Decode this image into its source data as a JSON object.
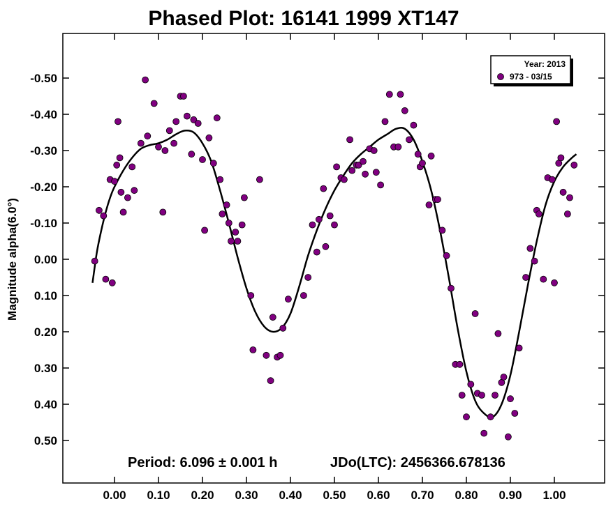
{
  "chart_data": {
    "type": "scatter",
    "title": "Phased Plot: 16141 1999 XT147",
    "xlabel": "",
    "ylabel": "Magnitude alpha(6.0°)",
    "xlim": [
      -0.12,
      1.1
    ],
    "ylim": [
      0.62,
      -0.62
    ],
    "y_inverted": true,
    "x_ticks": [
      "0.00",
      "0.10",
      "0.20",
      "0.30",
      "0.40",
      "0.50",
      "0.60",
      "0.70",
      "0.80",
      "0.90",
      "1.00"
    ],
    "x_tick_values": [
      0.0,
      0.1,
      0.2,
      0.3,
      0.4,
      0.5,
      0.6,
      0.7,
      0.8,
      0.9,
      1.0
    ],
    "y_ticks": [
      "-0.50",
      "-0.40",
      "-0.30",
      "-0.20",
      "-0.10",
      "0.00",
      "0.10",
      "0.20",
      "0.30",
      "0.40",
      "0.50"
    ],
    "y_tick_values": [
      -0.5,
      -0.4,
      -0.3,
      -0.2,
      -0.1,
      0.0,
      0.1,
      0.2,
      0.3,
      0.4,
      0.5
    ],
    "grid": false,
    "legend": {
      "placement": "top-right",
      "title": "Year: 2013",
      "entries": [
        {
          "label": "973 - 03/15",
          "color": "#800080"
        }
      ]
    },
    "annotations": {
      "period": "Period: 6.096 ± 0.001 h",
      "jdo": "JDo(LTC): 2456366.678136"
    },
    "series": [
      {
        "name": "973 - 03/15",
        "color": "#800080",
        "points": [
          [
            -0.045,
            0.005
          ],
          [
            -0.035,
            -0.135
          ],
          [
            -0.025,
            -0.12
          ],
          [
            -0.02,
            0.055
          ],
          [
            -0.01,
            -0.22
          ],
          [
            -0.005,
            0.065
          ],
          [
            0.0,
            -0.215
          ],
          [
            0.005,
            -0.26
          ],
          [
            0.008,
            -0.38
          ],
          [
            0.012,
            -0.28
          ],
          [
            0.015,
            -0.185
          ],
          [
            0.02,
            -0.13
          ],
          [
            0.03,
            -0.17
          ],
          [
            0.04,
            -0.255
          ],
          [
            0.045,
            -0.19
          ],
          [
            0.06,
            -0.32
          ],
          [
            0.07,
            -0.495
          ],
          [
            0.075,
            -0.34
          ],
          [
            0.09,
            -0.43
          ],
          [
            0.1,
            -0.31
          ],
          [
            0.11,
            -0.13
          ],
          [
            0.115,
            -0.3
          ],
          [
            0.125,
            -0.355
          ],
          [
            0.135,
            -0.32
          ],
          [
            0.14,
            -0.38
          ],
          [
            0.15,
            -0.45
          ],
          [
            0.157,
            -0.45
          ],
          [
            0.165,
            -0.395
          ],
          [
            0.175,
            -0.29
          ],
          [
            0.18,
            -0.385
          ],
          [
            0.19,
            -0.375
          ],
          [
            0.2,
            -0.275
          ],
          [
            0.205,
            -0.08
          ],
          [
            0.215,
            -0.335
          ],
          [
            0.225,
            -0.265
          ],
          [
            0.233,
            -0.39
          ],
          [
            0.24,
            -0.22
          ],
          [
            0.245,
            -0.125
          ],
          [
            0.255,
            -0.15
          ],
          [
            0.26,
            -0.1
          ],
          [
            0.265,
            -0.05
          ],
          [
            0.275,
            -0.075
          ],
          [
            0.28,
            -0.05
          ],
          [
            0.29,
            -0.095
          ],
          [
            0.295,
            -0.17
          ],
          [
            0.31,
            0.1
          ],
          [
            0.315,
            0.25
          ],
          [
            0.33,
            -0.22
          ],
          [
            0.345,
            0.265
          ],
          [
            0.355,
            0.335
          ],
          [
            0.36,
            0.16
          ],
          [
            0.37,
            0.27
          ],
          [
            0.377,
            0.265
          ],
          [
            0.383,
            0.19
          ],
          [
            0.395,
            0.11
          ],
          [
            0.43,
            0.1
          ],
          [
            0.44,
            0.05
          ],
          [
            0.45,
            -0.095
          ],
          [
            0.46,
            -0.02
          ],
          [
            0.465,
            -0.11
          ],
          [
            0.475,
            -0.195
          ],
          [
            0.48,
            -0.035
          ],
          [
            0.49,
            -0.12
          ],
          [
            0.5,
            -0.095
          ],
          [
            0.505,
            -0.255
          ],
          [
            0.515,
            -0.225
          ],
          [
            0.522,
            -0.22
          ],
          [
            0.535,
            -0.33
          ],
          [
            0.54,
            -0.245
          ],
          [
            0.55,
            -0.26
          ],
          [
            0.555,
            -0.26
          ],
          [
            0.565,
            -0.27
          ],
          [
            0.57,
            -0.235
          ],
          [
            0.58,
            -0.305
          ],
          [
            0.59,
            -0.3
          ],
          [
            0.595,
            -0.24
          ],
          [
            0.605,
            -0.205
          ],
          [
            0.615,
            -0.38
          ],
          [
            0.625,
            -0.455
          ],
          [
            0.635,
            -0.31
          ],
          [
            0.645,
            -0.31
          ],
          [
            0.65,
            -0.455
          ],
          [
            0.66,
            -0.41
          ],
          [
            0.67,
            -0.33
          ],
          [
            0.68,
            -0.37
          ],
          [
            0.69,
            -0.29
          ],
          [
            0.695,
            -0.255
          ],
          [
            0.7,
            -0.265
          ],
          [
            0.715,
            -0.15
          ],
          [
            0.72,
            -0.285
          ],
          [
            0.73,
            -0.165
          ],
          [
            0.735,
            -0.165
          ],
          [
            0.745,
            -0.08
          ],
          [
            0.755,
            -0.01
          ],
          [
            0.765,
            0.08
          ],
          [
            0.775,
            0.29
          ],
          [
            0.785,
            0.29
          ],
          [
            0.79,
            0.375
          ],
          [
            0.8,
            0.435
          ],
          [
            0.81,
            0.345
          ],
          [
            0.82,
            0.15
          ],
          [
            0.825,
            0.37
          ],
          [
            0.835,
            0.375
          ],
          [
            0.84,
            0.48
          ],
          [
            0.855,
            0.435
          ],
          [
            0.865,
            0.375
          ],
          [
            0.872,
            0.205
          ],
          [
            0.88,
            0.34
          ],
          [
            0.885,
            0.325
          ],
          [
            0.895,
            0.49
          ],
          [
            0.9,
            0.385
          ],
          [
            0.91,
            0.425
          ],
          [
            0.92,
            0.245
          ],
          [
            0.935,
            0.05
          ],
          [
            0.945,
            -0.03
          ],
          [
            0.955,
            0.005
          ],
          [
            0.96,
            -0.135
          ],
          [
            0.965,
            -0.125
          ],
          [
            0.975,
            0.055
          ],
          [
            0.985,
            -0.225
          ],
          [
            0.995,
            -0.22
          ],
          [
            1.0,
            0.065
          ],
          [
            1.005,
            -0.38
          ],
          [
            1.01,
            -0.265
          ],
          [
            1.015,
            -0.28
          ],
          [
            1.02,
            -0.185
          ],
          [
            1.03,
            -0.125
          ],
          [
            1.035,
            -0.17
          ],
          [
            1.045,
            -0.26
          ]
        ]
      }
    ],
    "fit_curve": {
      "points": [
        [
          -0.05,
          0.065
        ],
        [
          -0.04,
          -0.02
        ],
        [
          -0.03,
          -0.08
        ],
        [
          -0.02,
          -0.13
        ],
        [
          -0.01,
          -0.17
        ],
        [
          0.0,
          -0.2
        ],
        [
          0.02,
          -0.245
        ],
        [
          0.04,
          -0.28
        ],
        [
          0.06,
          -0.305
        ],
        [
          0.08,
          -0.315
        ],
        [
          0.1,
          -0.32
        ],
        [
          0.12,
          -0.33
        ],
        [
          0.14,
          -0.345
        ],
        [
          0.16,
          -0.355
        ],
        [
          0.18,
          -0.35
        ],
        [
          0.2,
          -0.32
        ],
        [
          0.22,
          -0.27
        ],
        [
          0.24,
          -0.19
        ],
        [
          0.26,
          -0.1
        ],
        [
          0.28,
          -0.005
        ],
        [
          0.3,
          0.08
        ],
        [
          0.32,
          0.145
        ],
        [
          0.34,
          0.185
        ],
        [
          0.36,
          0.2
        ],
        [
          0.38,
          0.19
        ],
        [
          0.4,
          0.15
        ],
        [
          0.42,
          0.075
        ],
        [
          0.44,
          -0.01
        ],
        [
          0.46,
          -0.08
        ],
        [
          0.48,
          -0.14
        ],
        [
          0.5,
          -0.19
        ],
        [
          0.52,
          -0.23
        ],
        [
          0.54,
          -0.265
        ],
        [
          0.56,
          -0.29
        ],
        [
          0.58,
          -0.31
        ],
        [
          0.6,
          -0.33
        ],
        [
          0.62,
          -0.345
        ],
        [
          0.64,
          -0.36
        ],
        [
          0.66,
          -0.36
        ],
        [
          0.68,
          -0.33
        ],
        [
          0.7,
          -0.27
        ],
        [
          0.72,
          -0.19
        ],
        [
          0.74,
          -0.08
        ],
        [
          0.76,
          0.05
        ],
        [
          0.78,
          0.19
        ],
        [
          0.8,
          0.31
        ],
        [
          0.82,
          0.39
        ],
        [
          0.84,
          0.425
        ],
        [
          0.86,
          0.435
        ],
        [
          0.88,
          0.4
        ],
        [
          0.9,
          0.32
        ],
        [
          0.92,
          0.2
        ],
        [
          0.94,
          0.07
        ],
        [
          0.96,
          -0.05
        ],
        [
          0.98,
          -0.15
        ],
        [
          1.0,
          -0.215
        ],
        [
          1.02,
          -0.255
        ],
        [
          1.04,
          -0.28
        ],
        [
          1.05,
          -0.29
        ]
      ]
    }
  }
}
